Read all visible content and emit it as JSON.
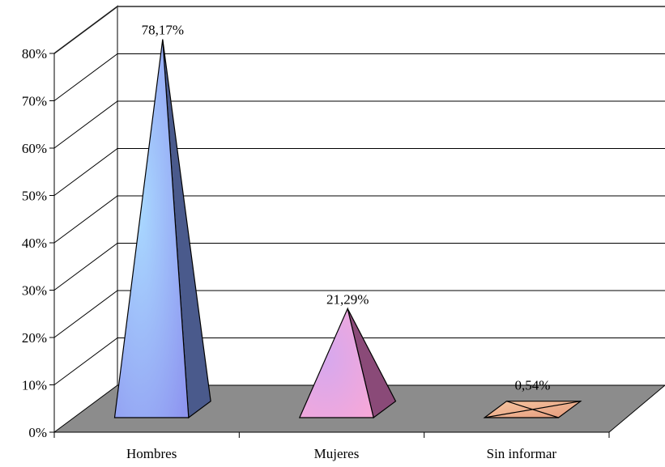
{
  "chart_data": {
    "type": "bar",
    "style": "3d-pyramid",
    "categories": [
      "Hombres",
      "Mujeres",
      "Sin informar"
    ],
    "values": [
      78.17,
      21.29,
      0.54
    ],
    "data_labels": [
      "78,17%",
      "21,29%",
      "0,54%"
    ],
    "ylim": [
      0,
      80
    ],
    "yticks": [
      0,
      10,
      20,
      30,
      40,
      50,
      60,
      70,
      80
    ],
    "ytick_labels": [
      "0%",
      "10%",
      "20%",
      "30%",
      "40%",
      "50%",
      "60%",
      "70%",
      "80%"
    ],
    "grid": true,
    "legend": "none",
    "colors": {
      "floor": "#8c8c8c",
      "hombres": [
        "#a9d8ff",
        "#8e95f0"
      ],
      "mujeres": [
        "#f7a8d8",
        "#d6a8ee"
      ],
      "sin_informar": [
        "#f6c7a2",
        "#e59a7c"
      ]
    }
  }
}
